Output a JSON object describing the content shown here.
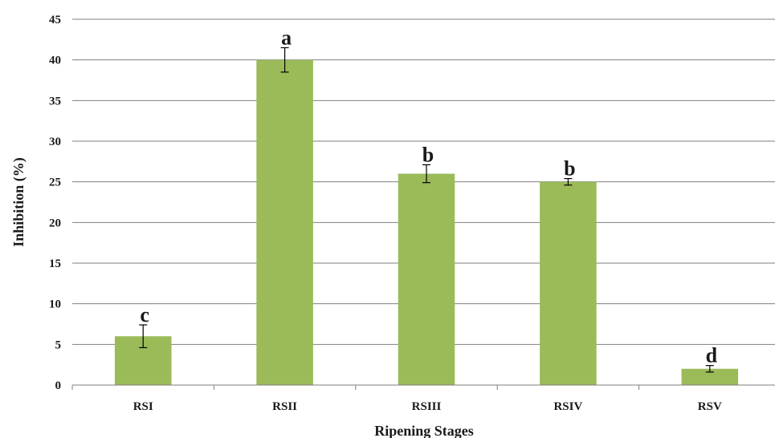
{
  "chart_data": {
    "type": "bar",
    "title": "",
    "xlabel": "Ripening Stages",
    "ylabel": "Inhibition  (%)",
    "categories": [
      "RSI",
      "RSII",
      "RSIII",
      "RSIV",
      "RSV"
    ],
    "values": [
      6,
      40,
      26,
      25,
      2
    ],
    "error": [
      1.4,
      1.5,
      1.1,
      0.4,
      0.4
    ],
    "significance_labels": [
      "c",
      "a",
      "b",
      "b",
      "d"
    ],
    "ylim": [
      0,
      45
    ],
    "yticks": [
      0,
      5,
      10,
      15,
      20,
      25,
      30,
      35,
      40,
      45
    ],
    "grid": "horizontal",
    "legend": "none",
    "bar_color": "#9bbb59",
    "grid_color": "#7f7f7f"
  }
}
